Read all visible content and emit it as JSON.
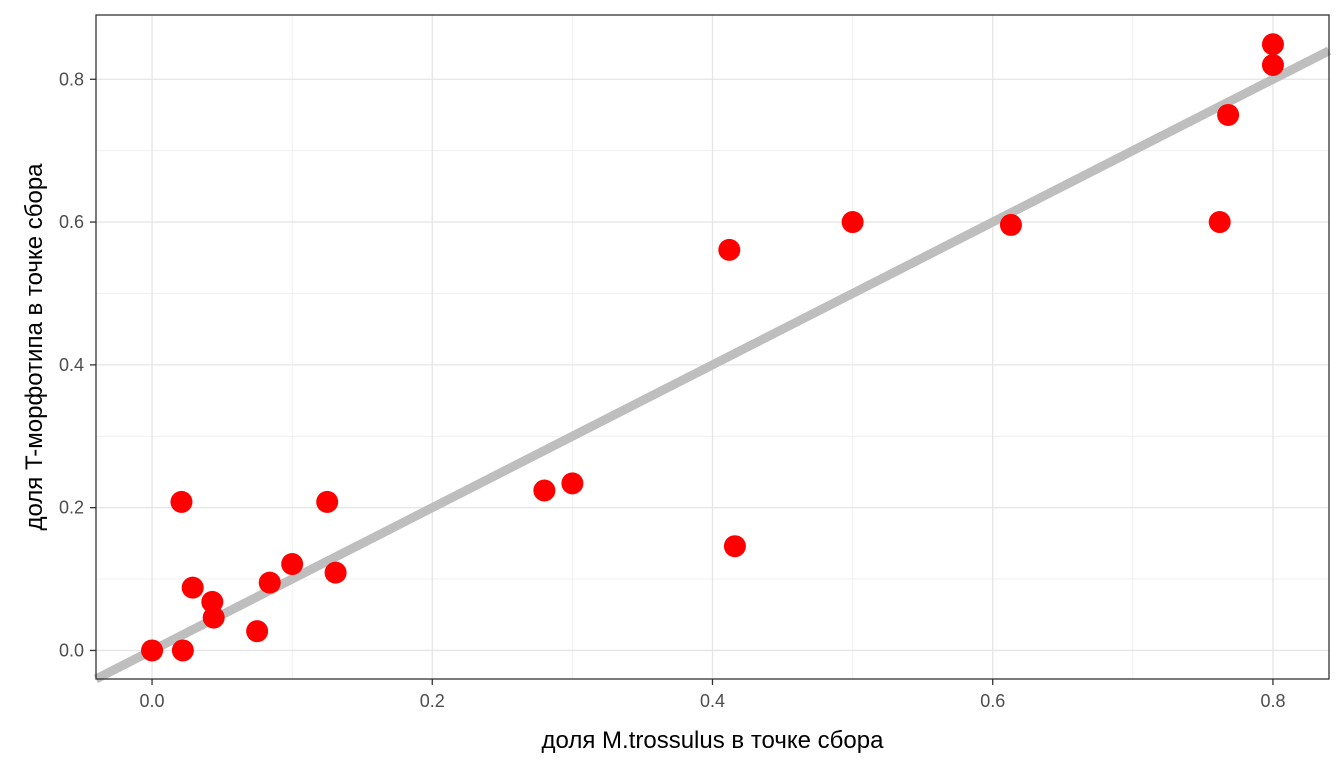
{
  "chart_data": {
    "type": "scatter",
    "title": "",
    "xlabel": "доля M.trossulus в точке сбора",
    "ylabel": "доля T-морфотипа в точке сбора",
    "xlim": [
      -0.04,
      0.84
    ],
    "ylim": [
      -0.04,
      0.89
    ],
    "x_ticks": [
      0.0,
      0.2,
      0.4,
      0.6,
      0.8
    ],
    "y_ticks": [
      0.0,
      0.2,
      0.4,
      0.6,
      0.8
    ],
    "x_tick_labels": [
      "0.0",
      "0.2",
      "0.4",
      "0.6",
      "0.8"
    ],
    "y_tick_labels": [
      "0.0",
      "0.2",
      "0.4",
      "0.6",
      "0.8"
    ],
    "grid": true,
    "legend": "none",
    "point_color": "#ff0000",
    "reference_line": {
      "type": "y = x",
      "color": "#bebebe"
    },
    "points": [
      {
        "x": 0.0,
        "y": 0.0
      },
      {
        "x": 0.022,
        "y": 0.0
      },
      {
        "x": 0.021,
        "y": 0.208
      },
      {
        "x": 0.029,
        "y": 0.088
      },
      {
        "x": 0.043,
        "y": 0.068
      },
      {
        "x": 0.044,
        "y": 0.046
      },
      {
        "x": 0.075,
        "y": 0.027
      },
      {
        "x": 0.084,
        "y": 0.095
      },
      {
        "x": 0.1,
        "y": 0.121
      },
      {
        "x": 0.125,
        "y": 0.208
      },
      {
        "x": 0.131,
        "y": 0.109
      },
      {
        "x": 0.28,
        "y": 0.224
      },
      {
        "x": 0.3,
        "y": 0.234
      },
      {
        "x": 0.412,
        "y": 0.561
      },
      {
        "x": 0.416,
        "y": 0.146
      },
      {
        "x": 0.5,
        "y": 0.6
      },
      {
        "x": 0.613,
        "y": 0.596
      },
      {
        "x": 0.762,
        "y": 0.6
      },
      {
        "x": 0.768,
        "y": 0.75
      },
      {
        "x": 0.8,
        "y": 0.82
      },
      {
        "x": 0.8,
        "y": 0.849
      }
    ]
  }
}
